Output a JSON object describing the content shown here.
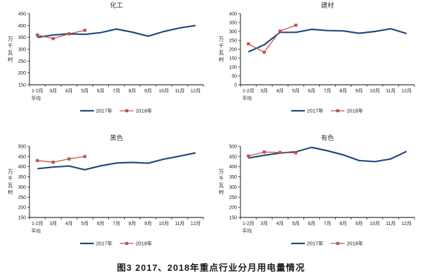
{
  "page": {
    "background": "#ffffff",
    "caption": "图3  2017、2018年重点行业分月用电量情况"
  },
  "colors": {
    "axis": "#000000",
    "tick_text": "#1a1a1a",
    "title_text": "#333333",
    "caption_text": "#1a1a1a",
    "series_2017": "#1f497d",
    "series_2018": "#c0504d"
  },
  "chart_data": [
    {
      "id": "chemical",
      "type": "line",
      "title": "化工",
      "ylabel": "万千瓦时",
      "xlabel": "",
      "ylim": [
        150,
        450
      ],
      "ytick_step": 50,
      "grid": false,
      "legend_position": "bottom",
      "categories": [
        "1-2月\n平均",
        "3月",
        "4月",
        "5月",
        "6月",
        "7月",
        "8月",
        "9月",
        "10月",
        "11月",
        "12月"
      ],
      "series": [
        {
          "name": "2017年",
          "color": "#1f497d",
          "marker": "none",
          "values": [
            350,
            360,
            365,
            363,
            370,
            385,
            372,
            355,
            375,
            390,
            400
          ]
        },
        {
          "name": "2018年",
          "color": "#c0504d",
          "marker": "square",
          "values": [
            360,
            345,
            365,
            380
          ]
        }
      ]
    },
    {
      "id": "building-materials",
      "type": "line",
      "title": "建材",
      "ylabel": "万千瓦时",
      "xlabel": "",
      "ylim": [
        0,
        400
      ],
      "ytick_step": 50,
      "grid": false,
      "legend_position": "bottom",
      "categories": [
        "1-2月\n平均",
        "3月",
        "4月",
        "5月",
        "6月",
        "7月",
        "8月",
        "9月",
        "10月",
        "11月",
        "12月"
      ],
      "series": [
        {
          "name": "2017年",
          "color": "#1f497d",
          "marker": "none",
          "values": [
            185,
            225,
            295,
            295,
            312,
            305,
            303,
            290,
            300,
            315,
            288
          ]
        },
        {
          "name": "2018年",
          "color": "#c0504d",
          "marker": "square",
          "values": [
            230,
            183,
            302,
            335
          ]
        }
      ]
    },
    {
      "id": "ferrous",
      "type": "line",
      "title": "黑色",
      "ylabel": "万千瓦时",
      "xlabel": "",
      "ylim": [
        150,
        500
      ],
      "ytick_step": 50,
      "grid": false,
      "legend_position": "bottom",
      "categories": [
        "1-2月\n平均",
        "3月",
        "4月",
        "5月",
        "6月",
        "7月",
        "8月",
        "9月",
        "10月",
        "11月",
        "12月"
      ],
      "series": [
        {
          "name": "2017年",
          "color": "#1f497d",
          "marker": "none",
          "values": [
            390,
            398,
            403,
            385,
            404,
            418,
            421,
            417,
            437,
            452,
            468
          ]
        },
        {
          "name": "2018年",
          "color": "#c0504d",
          "marker": "square",
          "values": [
            430,
            422,
            438,
            450
          ]
        }
      ]
    },
    {
      "id": "nonferrous",
      "type": "line",
      "title": "有色",
      "ylabel": "万千瓦时",
      "xlabel": "",
      "ylim": [
        150,
        500
      ],
      "ytick_step": 50,
      "grid": false,
      "legend_position": "bottom",
      "categories": [
        "1-2月\n平均",
        "3月",
        "4月",
        "5月",
        "6月",
        "7月",
        "8月",
        "9月",
        "10月",
        "11月",
        "12月"
      ],
      "series": [
        {
          "name": "2017年",
          "color": "#1f497d",
          "marker": "none",
          "values": [
            442,
            456,
            467,
            473,
            495,
            478,
            458,
            430,
            425,
            438,
            475
          ]
        },
        {
          "name": "2018年",
          "color": "#c0504d",
          "marker": "square",
          "values": [
            452,
            472,
            470,
            468
          ]
        }
      ]
    }
  ]
}
